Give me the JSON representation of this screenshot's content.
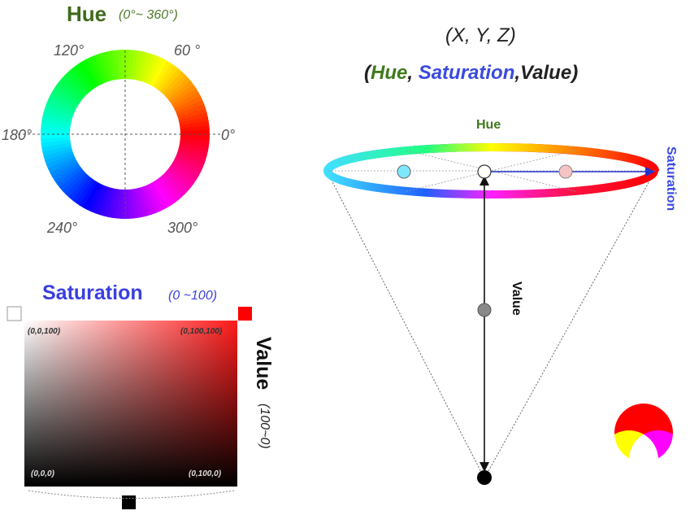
{
  "hue_wheel": {
    "title": "Hue",
    "range": "(0°~ 360°)",
    "angles": {
      "a120": "120°",
      "a60": "60 °",
      "a180": "180°",
      "a0": "0°",
      "a240": "240°",
      "a300": "300°"
    }
  },
  "sv_square": {
    "saturation_title": "Saturation",
    "saturation_range": "(0 ~100)",
    "value_title": "Value",
    "value_range": "(100~0)",
    "corners": {
      "top_left": "(0,0,100)",
      "top_right": "(0,100,100)",
      "bottom_left": "(0,0,0)",
      "bottom_right": "(0,100,0)"
    }
  },
  "cone": {
    "coords": "(X, Y, Z)",
    "hsv_open": "(",
    "hsv_hue": "Hue",
    "hsv_sep1": ", ",
    "hsv_sat": "Saturation",
    "hsv_sep2": ",",
    "hsv_value": "Value",
    "hsv_close": ")",
    "hue_label": "Hue",
    "saturation_label": "Saturation",
    "value_label": "Value"
  },
  "colors": {
    "hue_green": "#3f6a1c",
    "saturation_blue": "#3a3fe0",
    "red": "#ff0000",
    "black": "#000000"
  }
}
